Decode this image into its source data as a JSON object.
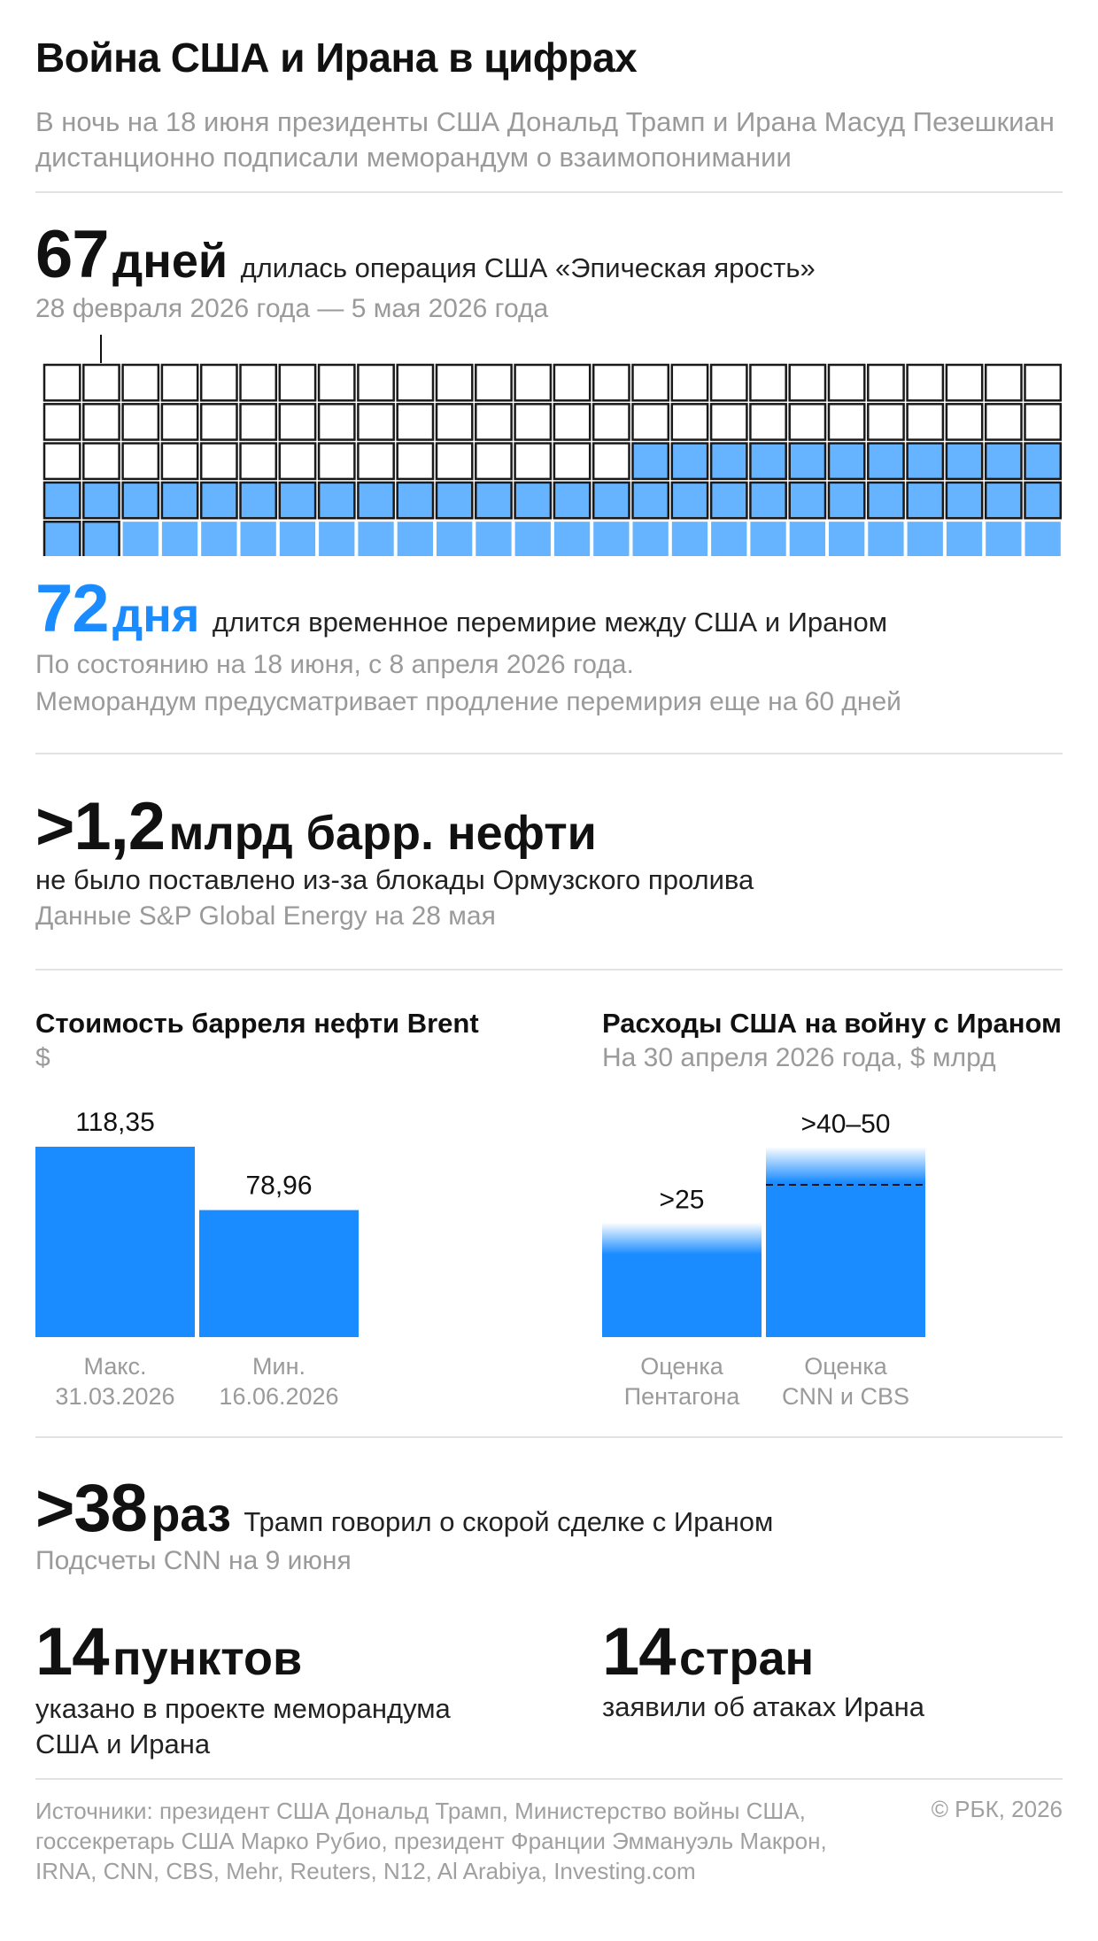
{
  "header": {
    "title": "Война США и Ирана в цифрах",
    "subtitle": "В ночь на 18 июня президенты США Дональд Трамп и Ирана Масуд Пезешкиан дистанционно подписали меморандум о взаимопонимании"
  },
  "operation": {
    "number": "67",
    "unit": "дней",
    "text": "длилась операция США «Эпическая ярость»",
    "dates": "28 февраля 2026 года — 5 мая 2026 года"
  },
  "ceasefire": {
    "number": "72",
    "unit": "дня",
    "text": "длится временное перемирие между США и Ираном",
    "note1": "По состоянию на 18 июня, с 8 апреля 2026 года.",
    "note2": "Меморандум предусматривает продление перемирия еще на 60 дней"
  },
  "oil": {
    "number": ">1,2",
    "unit": "млрд барр. нефти",
    "text": "не было поставлено из-за блокады Ормузского пролива",
    "note": "Данные S&P Global Energy на 28 мая"
  },
  "trump": {
    "number": ">38",
    "unit": "раз",
    "text": "Трамп говорил о скорой сделке с Ираном",
    "note": "Подсчеты CNN на 9 июня"
  },
  "points": {
    "number": "14",
    "unit": "пунктов",
    "text1": "указано в проекте меморандума",
    "text2": "США и Ирана"
  },
  "countries": {
    "number": "14",
    "unit": "стран",
    "text": "заявили об атаках Ирана"
  },
  "colors": {
    "accent": "#1a8cff",
    "light": "#66b3ff",
    "grid_border": "#1a1a1a"
  },
  "chart_data": [
    {
      "type": "waffle",
      "title": "",
      "columns": 26,
      "rows_order": "top-to-bottom",
      "segments": [
        {
          "label": "empty",
          "count": 39
        },
        {
          "label": "operation",
          "count": 13
        },
        {
          "label": "operation",
          "count": 15
        },
        {
          "label": "operation_and_ceasefire",
          "count": 39
        },
        {
          "label": "ceasefire",
          "count": 33
        }
      ]
    },
    {
      "type": "bar",
      "title": "Стоимость барреля нефти Brent",
      "subtitle": "$",
      "categories": [
        [
          "Макс.",
          "31.03.2026"
        ],
        [
          "Мин.",
          "16.06.2026"
        ]
      ],
      "values": [
        118.35,
        78.96
      ],
      "value_labels": [
        "118,35",
        "78,96"
      ],
      "ylim": [
        0,
        118.35
      ]
    },
    {
      "type": "bar",
      "title": "Расходы США на войну с Ираном",
      "subtitle": "На 30 апреля 2026 года, $ млрд",
      "categories": [
        [
          "Оценка",
          "Пентагона"
        ],
        [
          "Оценка",
          "CNN и CBS"
        ]
      ],
      "values": [
        25,
        50
      ],
      "lower_bounds": [
        25,
        40
      ],
      "value_labels": [
        ">25",
        ">40–50"
      ],
      "ylim": [
        0,
        50
      ]
    }
  ],
  "footer": {
    "sources": "Источники: президент США Дональд Трамп, Министерство войны США, госсекретарь США Марко Рубио, президент Франции Эммануэль Макрон, IRNA, CNN, CBS, Mehr, Reuters, N12, Al Arabiya, Investing.com",
    "copyright": "© РБК, 2026"
  }
}
